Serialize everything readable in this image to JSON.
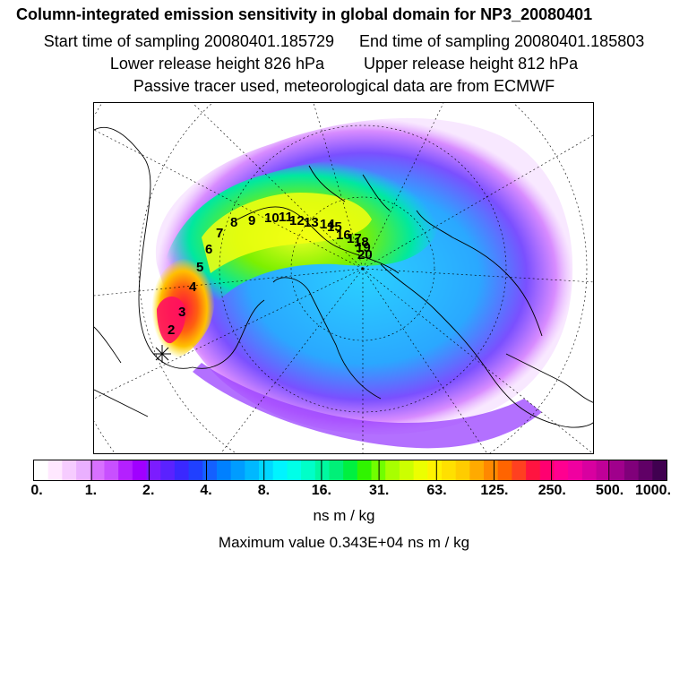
{
  "header": {
    "title": "Column-integrated emission sensitivity in global domain for NP3_20080401",
    "start_label": "Start time of sampling 20080401.185729",
    "end_label": "End time of sampling 20080401.185803",
    "lower_label": "Lower release height  826 hPa",
    "upper_label": "Upper release height  812 hPa",
    "tracer_label": "Passive tracer used, meteorological data are from ECMWF"
  },
  "map": {
    "trajectory_labels": [
      "2",
      "3",
      "4",
      "5",
      "6",
      "7",
      "8",
      "9",
      "10",
      "11",
      "12",
      "13",
      "14",
      "15",
      "16",
      "17",
      "18",
      "19",
      "20"
    ]
  },
  "colorbar": {
    "ticks": [
      "0.",
      "1.",
      "2.",
      "4.",
      "8.",
      "16.",
      "31.",
      "63.",
      "125.",
      "250.",
      "500.",
      "1000."
    ],
    "colors": [
      "#ffffff",
      "#ffe8ff",
      "#f6ccff",
      "#eab0ff",
      "#d870ff",
      "#c850ff",
      "#b420ff",
      "#a000ff",
      "#7c1cff",
      "#5a22ff",
      "#3a28ff",
      "#2040ff",
      "#1460ff",
      "#0080ff",
      "#009cff",
      "#00b8ff",
      "#00d8ff",
      "#00f4ff",
      "#00ffe8",
      "#00ffc8",
      "#00f8a0",
      "#00f078",
      "#00f040",
      "#30f400",
      "#70ff00",
      "#a8ff00",
      "#ccff00",
      "#ecff00",
      "#fff200",
      "#ffe000",
      "#ffcc00",
      "#ffaa00",
      "#ff8800",
      "#ff6400",
      "#ff4020",
      "#ff1440",
      "#ff0070",
      "#ff0090",
      "#f000a0",
      "#d800a0",
      "#c00098",
      "#a0008c",
      "#80007a",
      "#600066",
      "#400050"
    ],
    "units": "ns m / kg",
    "max_label": "Maximum value  0.343E+04 ns m / kg"
  }
}
